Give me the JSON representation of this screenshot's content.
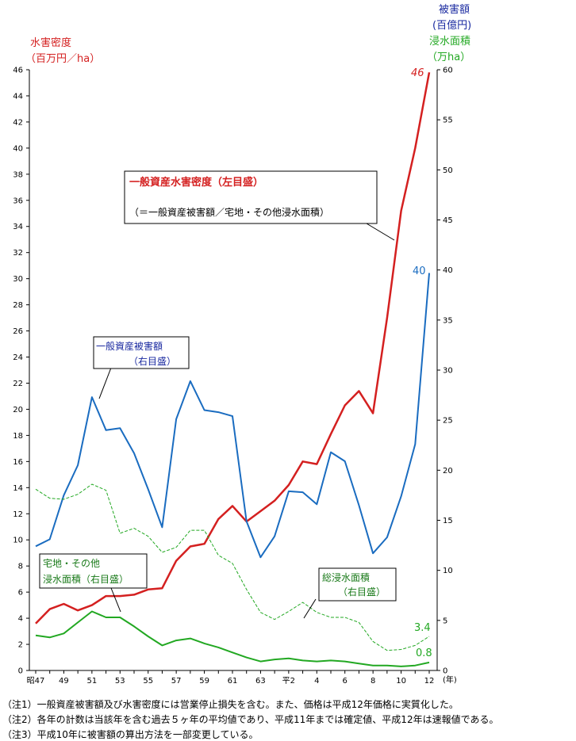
{
  "chart_data": {
    "type": "line",
    "x": [
      "昭47",
      "48",
      "49",
      "50",
      "51",
      "52",
      "53",
      "54",
      "55",
      "56",
      "57",
      "58",
      "59",
      "60",
      "61",
      "62",
      "63",
      "平元",
      "平2",
      "3",
      "4",
      "5",
      "6",
      "7",
      "8",
      "9",
      "10",
      "11",
      "12"
    ],
    "x_ticks": [
      "昭47",
      "49",
      "51",
      "53",
      "55",
      "57",
      "59",
      "61",
      "63",
      "平2",
      "4",
      "6",
      "8",
      "10",
      "12"
    ],
    "x_unit": "(年)",
    "left_axis": {
      "title_line1": "水害密度",
      "title_line2": "（百万円／ha）",
      "ticks": [
        0,
        2,
        4,
        6,
        8,
        10,
        12,
        14,
        16,
        18,
        20,
        22,
        24,
        26,
        28,
        30,
        32,
        34,
        36,
        38,
        40,
        42,
        44,
        46
      ],
      "ylim": [
        0,
        46
      ]
    },
    "right_axis": {
      "title1_line1": "被害額",
      "title1_line2": "(百億円)",
      "title2_line1": "浸水面積",
      "title2_line2": "（万ha）",
      "ticks": [
        0,
        5,
        10,
        15,
        20,
        25,
        30,
        35,
        40,
        45,
        50,
        55,
        60
      ],
      "ylim": [
        0,
        60
      ]
    },
    "series": [
      {
        "key": "density",
        "axis": "left",
        "color": "#d42020",
        "width": 2.5,
        "dash": "",
        "values": [
          3.6,
          4.7,
          5.1,
          4.6,
          5.0,
          5.7,
          5.7,
          5.8,
          6.2,
          6.3,
          8.4,
          9.5,
          9.7,
          11.6,
          12.6,
          11.4,
          12.2,
          13.0,
          14.2,
          16.0,
          15.8,
          18.1,
          20.3,
          21.4,
          19.7,
          27.0,
          35.2,
          40.0,
          45.8
        ]
      },
      {
        "key": "damage",
        "axis": "right",
        "color": "#1a6cc0",
        "width": 2,
        "dash": "",
        "values": [
          12.4,
          13.1,
          17.5,
          20.5,
          27.3,
          24.0,
          24.2,
          21.7,
          18.1,
          14.3,
          25.1,
          28.9,
          26.0,
          25.8,
          25.4,
          14.9,
          11.3,
          13.4,
          17.9,
          17.8,
          16.6,
          21.8,
          20.9,
          16.5,
          11.7,
          13.3,
          17.4,
          22.6,
          39.7
        ]
      },
      {
        "key": "total_area",
        "axis": "right",
        "color": "#22a822",
        "width": 1,
        "dash": "4,2",
        "values": [
          18.1,
          17.2,
          17.1,
          17.6,
          18.6,
          18.0,
          13.7,
          14.2,
          13.4,
          11.8,
          12.3,
          14.0,
          14.0,
          11.5,
          10.7,
          8.1,
          5.8,
          5.1,
          5.9,
          6.8,
          5.8,
          5.3,
          5.3,
          4.8,
          2.9,
          2.0,
          2.1,
          2.5,
          3.4
        ]
      },
      {
        "key": "residential_area",
        "axis": "right",
        "color": "#22a822",
        "width": 2,
        "dash": "",
        "values": [
          3.5,
          3.3,
          3.7,
          4.8,
          5.9,
          5.3,
          5.3,
          4.4,
          3.4,
          2.5,
          3.0,
          3.2,
          2.7,
          2.3,
          1.8,
          1.3,
          0.9,
          1.1,
          1.2,
          1.0,
          0.9,
          1.0,
          0.9,
          0.7,
          0.5,
          0.5,
          0.4,
          0.5,
          0.8
        ]
      }
    ],
    "end_labels": {
      "density": "46",
      "damage": "40",
      "total_area": "3.4",
      "residential_area": "0.8"
    },
    "annotations": {
      "density_line1": "一般資産水害密度（左目盛）",
      "density_line2": "（＝一般資産被害額／宅地・その他浸水面積）",
      "damage_line1": "一般資産被害額",
      "damage_line2": "（右目盛）",
      "residential_line1": "宅地・その他",
      "residential_line2": "浸水面積（右目盛）",
      "total_line1": "総浸水面積",
      "total_line2": "（右目盛）"
    },
    "grid": false,
    "legend": "none (callout boxes)"
  },
  "notes": [
    "（注1）一般資産被害額及び水害密度には営業停止損失を含む。また、価格は平成12年価格に実質化した。",
    "（注2）各年の計数は当該年を含む過去５ヶ年の平均値であり、平成11年までは確定値、平成12年は速報値である。",
    "（注3）平成10年に被害額の算出方法を一部変更している。"
  ],
  "colors": {
    "red": "#d42020",
    "blue": "#1a6cc0",
    "navy": "#1a2aa0",
    "green": "#22a822"
  }
}
